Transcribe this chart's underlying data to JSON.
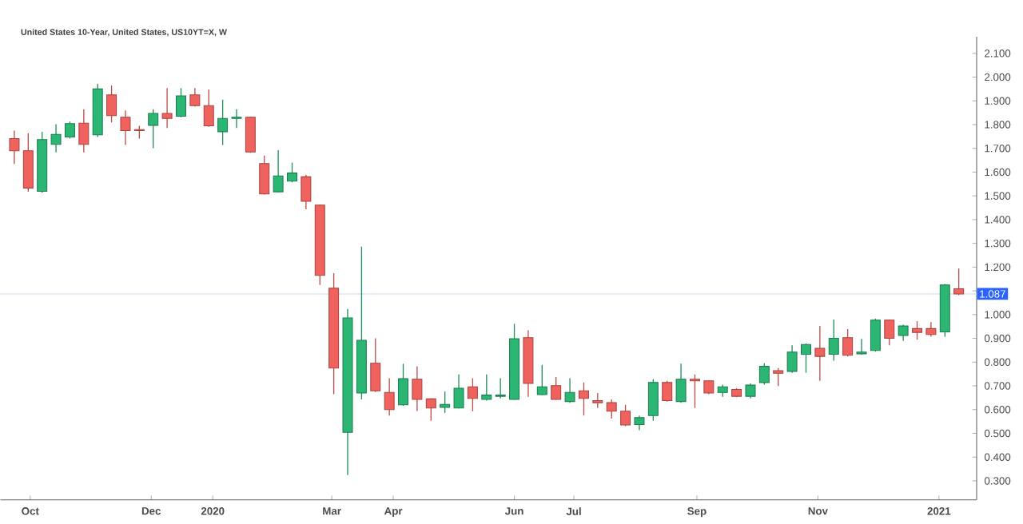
{
  "chart_data": {
    "type": "candlestick",
    "title": "United States 10-Year, United States, US10YT=X, W",
    "x": [
      "2019-09-23",
      "2019-09-30",
      "2019-10-07",
      "2019-10-14",
      "2019-10-21",
      "2019-10-28",
      "2019-11-04",
      "2019-11-11",
      "2019-11-18",
      "2019-11-25",
      "2019-12-02",
      "2019-12-09",
      "2019-12-16",
      "2019-12-23",
      "2019-12-30",
      "2020-01-06",
      "2020-01-13",
      "2020-01-20",
      "2020-01-27",
      "2020-02-03",
      "2020-02-10",
      "2020-02-17",
      "2020-02-24",
      "2020-03-02",
      "2020-03-09",
      "2020-03-16",
      "2020-03-23",
      "2020-03-30",
      "2020-04-06",
      "2020-04-13",
      "2020-04-20",
      "2020-04-27",
      "2020-05-04",
      "2020-05-11",
      "2020-05-18",
      "2020-05-25",
      "2020-06-01",
      "2020-06-08",
      "2020-06-15",
      "2020-06-22",
      "2020-06-29",
      "2020-07-06",
      "2020-07-13",
      "2020-07-20",
      "2020-07-27",
      "2020-08-03",
      "2020-08-10",
      "2020-08-17",
      "2020-08-24",
      "2020-08-31",
      "2020-09-07",
      "2020-09-14",
      "2020-09-21",
      "2020-09-28",
      "2020-10-05",
      "2020-10-12",
      "2020-10-19",
      "2020-10-26",
      "2020-11-02",
      "2020-11-09",
      "2020-11-16",
      "2020-11-23",
      "2020-11-30",
      "2020-12-07",
      "2020-12-14",
      "2020-12-21",
      "2020-12-28",
      "2021-01-04",
      "2021-01-11"
    ],
    "ohlc": [
      [
        1.741,
        1.775,
        1.634,
        1.69
      ],
      [
        1.69,
        1.764,
        1.517,
        1.533
      ],
      [
        1.519,
        1.77,
        1.513,
        1.737
      ],
      [
        1.717,
        1.802,
        1.683,
        1.759
      ],
      [
        1.748,
        1.813,
        1.741,
        1.804
      ],
      [
        1.806,
        1.865,
        1.683,
        1.717
      ],
      [
        1.757,
        1.972,
        1.748,
        1.95
      ],
      [
        1.925,
        1.965,
        1.809,
        1.838
      ],
      [
        1.831,
        1.86,
        1.714,
        1.775
      ],
      [
        1.779,
        1.795,
        1.741,
        1.775
      ],
      [
        1.797,
        1.865,
        1.701,
        1.847
      ],
      [
        1.847,
        1.954,
        1.786,
        1.826
      ],
      [
        1.835,
        1.954,
        1.831,
        1.921
      ],
      [
        1.925,
        1.954,
        1.876,
        1.88
      ],
      [
        1.88,
        1.948,
        1.791,
        1.795
      ],
      [
        1.77,
        1.905,
        1.714,
        1.826
      ],
      [
        1.826,
        1.865,
        1.786,
        1.831
      ],
      [
        1.831,
        1.834,
        1.681,
        1.685
      ],
      [
        1.636,
        1.67,
        1.506,
        1.508
      ],
      [
        1.517,
        1.692,
        1.515,
        1.584
      ],
      [
        1.562,
        1.64,
        1.557,
        1.596
      ],
      [
        1.58,
        1.589,
        1.443,
        1.477
      ],
      [
        1.461,
        1.463,
        1.125,
        1.165
      ],
      [
        1.111,
        1.174,
        0.665,
        0.775
      ],
      [
        0.504,
        1.024,
        0.324,
        0.986
      ],
      [
        0.67,
        1.286,
        0.643,
        0.892
      ],
      [
        0.795,
        0.9,
        0.674,
        0.679
      ],
      [
        0.672,
        0.732,
        0.575,
        0.6
      ],
      [
        0.62,
        0.793,
        0.616,
        0.73
      ],
      [
        0.728,
        0.782,
        0.593,
        0.643
      ],
      [
        0.645,
        0.647,
        0.553,
        0.607
      ],
      [
        0.609,
        0.676,
        0.586,
        0.622
      ],
      [
        0.607,
        0.748,
        0.605,
        0.69
      ],
      [
        0.696,
        0.732,
        0.593,
        0.647
      ],
      [
        0.643,
        0.748,
        0.638,
        0.661
      ],
      [
        0.656,
        0.732,
        0.647,
        0.661
      ],
      [
        0.643,
        0.961,
        0.641,
        0.898
      ],
      [
        0.903,
        0.934,
        0.654,
        0.71
      ],
      [
        0.663,
        0.788,
        0.661,
        0.696
      ],
      [
        0.701,
        0.737,
        0.641,
        0.643
      ],
      [
        0.634,
        0.732,
        0.629,
        0.672
      ],
      [
        0.679,
        0.714,
        0.575,
        0.647
      ],
      [
        0.638,
        0.67,
        0.607,
        0.629
      ],
      [
        0.629,
        0.643,
        0.562,
        0.593
      ],
      [
        0.593,
        0.62,
        0.53,
        0.535
      ],
      [
        0.537,
        0.575,
        0.513,
        0.566
      ],
      [
        0.575,
        0.728,
        0.553,
        0.714
      ],
      [
        0.714,
        0.721,
        0.634,
        0.638
      ],
      [
        0.634,
        0.793,
        0.629,
        0.728
      ],
      [
        0.728,
        0.748,
        0.607,
        0.721
      ],
      [
        0.721,
        0.723,
        0.665,
        0.67
      ],
      [
        0.672,
        0.705,
        0.654,
        0.696
      ],
      [
        0.685,
        0.69,
        0.652,
        0.656
      ],
      [
        0.656,
        0.71,
        0.647,
        0.703
      ],
      [
        0.714,
        0.795,
        0.705,
        0.782
      ],
      [
        0.764,
        0.775,
        0.699,
        0.753
      ],
      [
        0.761,
        0.871,
        0.755,
        0.842
      ],
      [
        0.833,
        0.878,
        0.755,
        0.874
      ],
      [
        0.858,
        0.952,
        0.721,
        0.824
      ],
      [
        0.833,
        0.979,
        0.806,
        0.9
      ],
      [
        0.903,
        0.939,
        0.824,
        0.829
      ],
      [
        0.835,
        0.898,
        0.831,
        0.842
      ],
      [
        0.849,
        0.983,
        0.844,
        0.977
      ],
      [
        0.977,
        0.979,
        0.871,
        0.9
      ],
      [
        0.912,
        0.957,
        0.889,
        0.952
      ],
      [
        0.941,
        0.972,
        0.894,
        0.925
      ],
      [
        0.941,
        0.968,
        0.907,
        0.916
      ],
      [
        0.927,
        1.129,
        0.907,
        1.125
      ],
      [
        1.109,
        1.194,
        1.082,
        1.087
      ]
    ],
    "colors": [
      "#f0625e",
      "#f0625e",
      "#2bb673",
      "#2bb673",
      "#2bb673",
      "#f0625e",
      "#2bb673",
      "#f0625e",
      "#f0625e",
      "#f0625e",
      "#2bb673",
      "#f0625e",
      "#2bb673",
      "#f0625e",
      "#f0625e",
      "#2bb673",
      "#2bb673",
      "#f0625e",
      "#f0625e",
      "#2bb673",
      "#2bb673",
      "#f0625e",
      "#f0625e",
      "#f0625e",
      "#2bb673",
      "#2bb673",
      "#f0625e",
      "#f0625e",
      "#2bb673",
      "#f0625e",
      "#f0625e",
      "#2bb673",
      "#2bb673",
      "#f0625e",
      "#2bb673",
      "#2bb673",
      "#2bb673",
      "#f0625e",
      "#2bb673",
      "#f0625e",
      "#2bb673",
      "#f0625e",
      "#f0625e",
      "#f0625e",
      "#f0625e",
      "#2bb673",
      "#2bb673",
      "#f0625e",
      "#2bb673",
      "#f0625e",
      "#f0625e",
      "#2bb673",
      "#f0625e",
      "#2bb673",
      "#2bb673",
      "#f0625e",
      "#2bb673",
      "#2bb673",
      "#f0625e",
      "#2bb673",
      "#f0625e",
      "#2bb673",
      "#2bb673",
      "#f0625e",
      "#2bb673",
      "#f0625e",
      "#f0625e",
      "#2bb673",
      "#f0625e"
    ],
    "xlim": [
      "2019-09-16",
      "2021-01-20"
    ],
    "xticks": [
      {
        "value": "2019-10-01",
        "label": "Oct"
      },
      {
        "value": "2019-12-01",
        "label": "Dec"
      },
      {
        "value": "2020-01-01",
        "label": "2020"
      },
      {
        "value": "2020-03-01",
        "label": "Mar"
      },
      {
        "value": "2020-04-01",
        "label": "Apr"
      },
      {
        "value": "2020-06-01",
        "label": "Jun"
      },
      {
        "value": "2020-07-01",
        "label": "Jul"
      },
      {
        "value": "2020-09-01",
        "label": "Sep"
      },
      {
        "value": "2020-11-01",
        "label": "Nov"
      },
      {
        "value": "2021-01-01",
        "label": "2021"
      }
    ],
    "ylim": [
      0.22,
      2.17
    ],
    "yticks": [
      {
        "value": 0.3,
        "label": "0.300"
      },
      {
        "value": 0.4,
        "label": "0.400"
      },
      {
        "value": 0.5,
        "label": "0.500"
      },
      {
        "value": 0.6,
        "label": "0.600"
      },
      {
        "value": 0.7,
        "label": "0.700"
      },
      {
        "value": 0.8,
        "label": "0.800"
      },
      {
        "value": 0.9,
        "label": "0.900"
      },
      {
        "value": 1.0,
        "label": "1.000"
      },
      {
        "value": 1.1,
        "label": null
      },
      {
        "value": 1.2,
        "label": "1.200"
      },
      {
        "value": 1.3,
        "label": "1.300"
      },
      {
        "value": 1.4,
        "label": "1.400"
      },
      {
        "value": 1.5,
        "label": "1.500"
      },
      {
        "value": 1.6,
        "label": "1.600"
      },
      {
        "value": 1.7,
        "label": "1.700"
      },
      {
        "value": 1.8,
        "label": "1.800"
      },
      {
        "value": 1.9,
        "label": "1.900"
      },
      {
        "value": 2.0,
        "label": "2.000"
      },
      {
        "value": 2.1,
        "label": "2.100"
      }
    ],
    "ref_lines": [
      {
        "axis": "y",
        "value": 1.087,
        "label": "1.087",
        "color": "#c9d6f2"
      }
    ],
    "grid": false
  }
}
